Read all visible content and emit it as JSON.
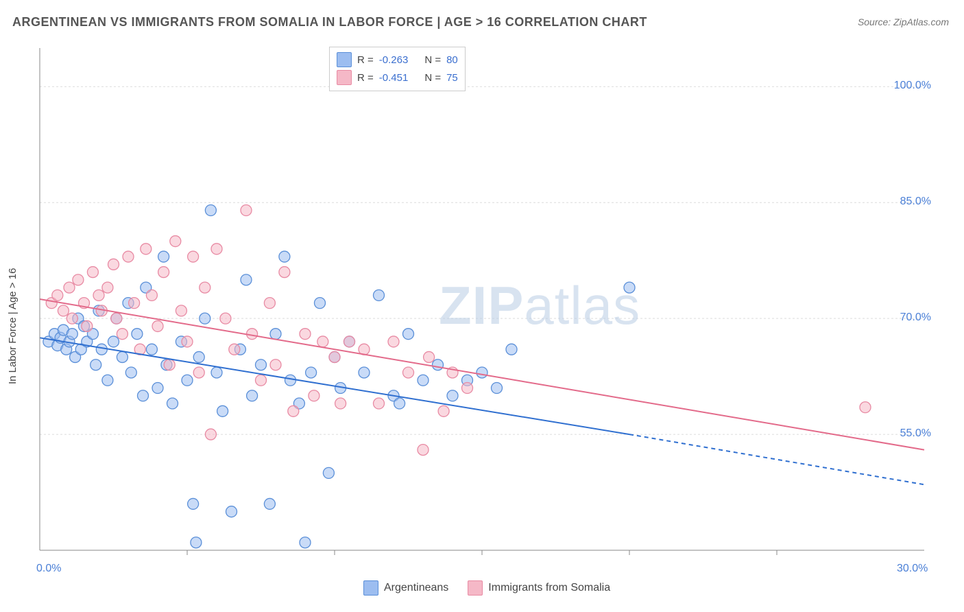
{
  "title": "ARGENTINEAN VS IMMIGRANTS FROM SOMALIA IN LABOR FORCE | AGE > 16 CORRELATION CHART",
  "source": "Source: ZipAtlas.com",
  "y_axis_label": "In Labor Force | Age > 16",
  "watermark_bold": "ZIP",
  "watermark_rest": "atlas",
  "chart": {
    "type": "scatter-with-regression",
    "background_color": "#ffffff",
    "grid_color": "#dcdcdc",
    "axis_color": "#888888",
    "x": {
      "min": 0.0,
      "max": 30.0,
      "ticks": [
        0.0,
        30.0
      ],
      "tick_labels": [
        "0.0%",
        "30.0%"
      ],
      "minor_ticks": [
        5,
        10,
        15,
        20,
        25
      ]
    },
    "y": {
      "min": 40.0,
      "max": 105.0,
      "ticks": [
        55.0,
        70.0,
        85.0,
        100.0
      ],
      "tick_labels": [
        "55.0%",
        "70.0%",
        "85.0%",
        "100.0%"
      ]
    },
    "marker_radius": 8,
    "marker_opacity": 0.55,
    "line_width": 2
  },
  "series": [
    {
      "name": "Argentineans",
      "fill_color": "#9cbdf0",
      "stroke_color": "#5a8fd8",
      "line_color": "#2f6fd0",
      "reg_start": [
        0,
        67.5
      ],
      "reg_solid_end": [
        20,
        55.0
      ],
      "reg_dash_end": [
        30,
        48.5
      ],
      "R": "-0.263",
      "N": "80",
      "points": [
        [
          0.3,
          67
        ],
        [
          0.5,
          68
        ],
        [
          0.6,
          66.5
        ],
        [
          0.7,
          67.5
        ],
        [
          0.8,
          68.5
        ],
        [
          0.9,
          66
        ],
        [
          1.0,
          67
        ],
        [
          1.1,
          68
        ],
        [
          1.2,
          65
        ],
        [
          1.3,
          70
        ],
        [
          1.4,
          66
        ],
        [
          1.5,
          69
        ],
        [
          1.6,
          67
        ],
        [
          1.8,
          68
        ],
        [
          1.9,
          64
        ],
        [
          2.0,
          71
        ],
        [
          2.1,
          66
        ],
        [
          2.3,
          62
        ],
        [
          2.5,
          67
        ],
        [
          2.6,
          70
        ],
        [
          2.8,
          65
        ],
        [
          3.0,
          72
        ],
        [
          3.1,
          63
        ],
        [
          3.3,
          68
        ],
        [
          3.5,
          60
        ],
        [
          3.6,
          74
        ],
        [
          3.8,
          66
        ],
        [
          4.0,
          61
        ],
        [
          4.2,
          78
        ],
        [
          4.3,
          64
        ],
        [
          4.5,
          59
        ],
        [
          4.8,
          67
        ],
        [
          5.0,
          62
        ],
        [
          5.2,
          46
        ],
        [
          5.4,
          65
        ],
        [
          5.6,
          70
        ],
        [
          5.8,
          84
        ],
        [
          6.0,
          63
        ],
        [
          6.2,
          58
        ],
        [
          6.5,
          45
        ],
        [
          6.8,
          66
        ],
        [
          7.0,
          75
        ],
        [
          7.2,
          60
        ],
        [
          7.5,
          64
        ],
        [
          7.8,
          46
        ],
        [
          8.0,
          68
        ],
        [
          8.3,
          78
        ],
        [
          8.5,
          62
        ],
        [
          8.8,
          59
        ],
        [
          9.0,
          41
        ],
        [
          9.2,
          63
        ],
        [
          9.5,
          72
        ],
        [
          9.8,
          50
        ],
        [
          10.0,
          65
        ],
        [
          10.2,
          61
        ],
        [
          10.5,
          67
        ],
        [
          11.0,
          63
        ],
        [
          11.5,
          73
        ],
        [
          12.0,
          60
        ],
        [
          12.2,
          59
        ],
        [
          12.5,
          68
        ],
        [
          13.0,
          62
        ],
        [
          13.5,
          64
        ],
        [
          14.0,
          60
        ],
        [
          14.5,
          62
        ],
        [
          15.0,
          63
        ],
        [
          15.5,
          61
        ],
        [
          16.0,
          66
        ],
        [
          20.0,
          74
        ],
        [
          5.3,
          41
        ]
      ]
    },
    {
      "name": "Immigrants from Somalia",
      "fill_color": "#f5b8c7",
      "stroke_color": "#e88aa3",
      "line_color": "#e36a8a",
      "reg_start": [
        0,
        72.5
      ],
      "reg_solid_end": [
        30,
        53.0
      ],
      "reg_dash_end": null,
      "R": "-0.451",
      "N": "75",
      "points": [
        [
          0.4,
          72
        ],
        [
          0.6,
          73
        ],
        [
          0.8,
          71
        ],
        [
          1.0,
          74
        ],
        [
          1.1,
          70
        ],
        [
          1.3,
          75
        ],
        [
          1.5,
          72
        ],
        [
          1.6,
          69
        ],
        [
          1.8,
          76
        ],
        [
          2.0,
          73
        ],
        [
          2.1,
          71
        ],
        [
          2.3,
          74
        ],
        [
          2.5,
          77
        ],
        [
          2.6,
          70
        ],
        [
          2.8,
          68
        ],
        [
          3.0,
          78
        ],
        [
          3.2,
          72
        ],
        [
          3.4,
          66
        ],
        [
          3.6,
          79
        ],
        [
          3.8,
          73
        ],
        [
          4.0,
          69
        ],
        [
          4.2,
          76
        ],
        [
          4.4,
          64
        ],
        [
          4.6,
          80
        ],
        [
          4.8,
          71
        ],
        [
          5.0,
          67
        ],
        [
          5.2,
          78
        ],
        [
          5.4,
          63
        ],
        [
          5.6,
          74
        ],
        [
          5.8,
          55
        ],
        [
          6.0,
          79
        ],
        [
          6.3,
          70
        ],
        [
          6.6,
          66
        ],
        [
          7.0,
          84
        ],
        [
          7.2,
          68
        ],
        [
          7.5,
          62
        ],
        [
          7.8,
          72
        ],
        [
          8.0,
          64
        ],
        [
          8.3,
          76
        ],
        [
          8.6,
          58
        ],
        [
          9.0,
          68
        ],
        [
          9.3,
          60
        ],
        [
          9.6,
          67
        ],
        [
          10.0,
          65
        ],
        [
          10.2,
          59
        ],
        [
          10.5,
          67
        ],
        [
          11.0,
          66
        ],
        [
          11.5,
          59
        ],
        [
          12.0,
          67
        ],
        [
          12.5,
          63
        ],
        [
          13.0,
          53
        ],
        [
          13.2,
          65
        ],
        [
          13.7,
          58
        ],
        [
          14.0,
          63
        ],
        [
          14.5,
          61
        ],
        [
          28.0,
          58.5
        ]
      ]
    }
  ],
  "stats_legend": {
    "rows": [
      {
        "swatch_fill": "#9cbdf0",
        "swatch_stroke": "#5a8fd8",
        "r_label": "R =",
        "r_val": "-0.263",
        "n_label": "N =",
        "n_val": "80"
      },
      {
        "swatch_fill": "#f5b8c7",
        "swatch_stroke": "#e88aa3",
        "r_label": "R =",
        "r_val": "-0.451",
        "n_label": "N =",
        "n_val": "75"
      }
    ]
  },
  "bottom_legend": {
    "items": [
      {
        "swatch_fill": "#9cbdf0",
        "swatch_stroke": "#5a8fd8",
        "label": "Argentineans"
      },
      {
        "swatch_fill": "#f5b8c7",
        "swatch_stroke": "#e88aa3",
        "label": "Immigrants from Somalia"
      }
    ]
  }
}
